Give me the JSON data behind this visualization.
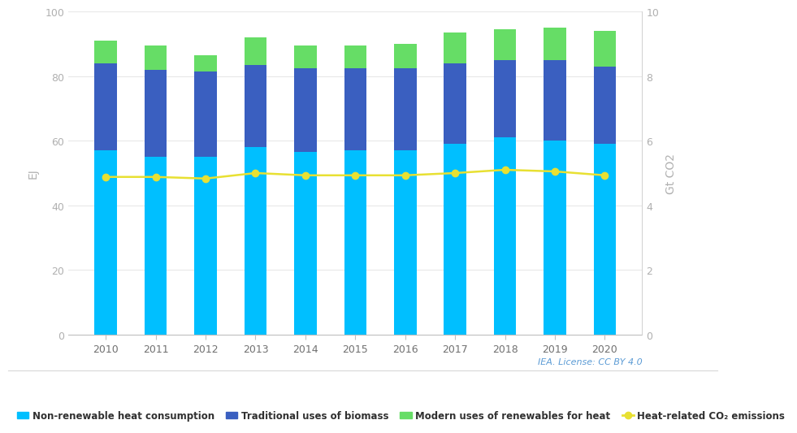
{
  "years": [
    2010,
    2011,
    2012,
    2013,
    2014,
    2015,
    2016,
    2017,
    2018,
    2019,
    2020
  ],
  "non_renewable": [
    57.0,
    55.0,
    55.0,
    58.0,
    56.5,
    57.0,
    57.0,
    59.0,
    61.0,
    60.0,
    59.0
  ],
  "trad_biomass": [
    27.0,
    27.0,
    26.5,
    25.5,
    26.0,
    25.5,
    25.5,
    25.0,
    24.0,
    25.0,
    24.0
  ],
  "modern_renewables": [
    7.0,
    7.5,
    5.0,
    8.5,
    7.0,
    7.0,
    7.5,
    9.5,
    9.5,
    10.0,
    11.0
  ],
  "co2_emissions": [
    4.88,
    4.88,
    4.83,
    5.0,
    4.93,
    4.93,
    4.93,
    5.0,
    5.1,
    5.05,
    4.93
  ],
  "color_non_renewable": "#00BFFF",
  "color_trad_biomass": "#3A5FC0",
  "color_modern_renewables": "#66DD66",
  "color_co2": "#E8E032",
  "ylabel_left": "EJ",
  "ylabel_right": "Gt CO2",
  "ylim_left": [
    0,
    100
  ],
  "ylim_right": [
    0,
    10
  ],
  "yticks_left": [
    0,
    20,
    40,
    60,
    80,
    100
  ],
  "yticks_right": [
    0,
    2,
    4,
    6,
    8,
    10
  ],
  "legend_labels": [
    "Non-renewable heat consumption",
    "Traditional uses of biomass",
    "Modern uses of renewables for heat",
    "Heat-related CO₂ emissions"
  ],
  "iea_text": "IEA. License: CC BY 4.0",
  "background_color": "#FFFFFF",
  "grid_color": "#E8E8E8"
}
